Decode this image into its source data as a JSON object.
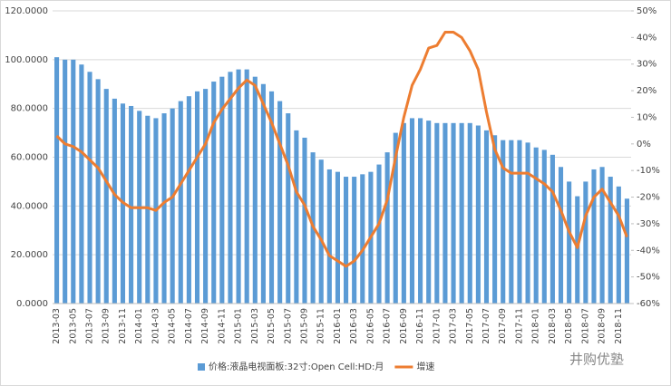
{
  "chart_data": {
    "type": "bar-line",
    "categories": [
      "2013-03",
      null,
      "2013-05",
      null,
      "2013-07",
      null,
      "2013-09",
      null,
      "2013-11",
      null,
      "2014-01",
      null,
      "2014-03",
      null,
      "2014-05",
      null,
      "2014-07",
      null,
      "2014-09",
      null,
      "2014-11",
      null,
      "2015-01",
      null,
      "2015-03",
      null,
      "2015-05",
      null,
      "2015-07",
      null,
      "2015-09",
      null,
      "2015-11",
      null,
      "2016-01",
      null,
      "2016-03",
      null,
      "2016-05",
      null,
      "2016-07",
      null,
      "2016-09",
      null,
      "2016-11",
      null,
      "2017-01",
      null,
      "2017-03",
      null,
      "2017-05",
      null,
      "2017-07",
      null,
      "2017-09",
      null,
      "2017-11",
      null,
      "2018-01",
      null,
      "2018-03",
      null,
      "2018-05",
      null,
      "2018-07",
      null,
      "2018-09",
      null,
      "2018-11",
      null
    ],
    "series": [
      {
        "name": "价格:液晶电视面板:32寸:Open Cell:HD:月",
        "color": "#5b9bd5",
        "values": [
          101,
          100,
          100,
          98,
          95,
          92,
          88,
          84,
          82,
          81,
          79,
          77,
          76,
          78,
          80,
          83,
          85,
          87,
          88,
          91,
          93,
          95,
          96,
          96,
          93,
          90,
          87,
          83,
          78,
          71,
          68,
          62,
          59,
          55,
          54,
          52,
          52,
          53,
          54,
          57,
          62,
          70,
          74,
          76,
          76,
          75,
          74,
          74,
          74,
          74,
          74,
          73,
          71,
          69,
          67,
          67,
          67,
          66,
          64,
          63,
          61,
          56,
          50,
          44,
          50,
          55,
          56,
          52,
          48,
          43
        ]
      },
      {
        "name": "增速",
        "color": "#ed7d31",
        "axis": "y2",
        "values": [
          3,
          0,
          -1,
          -3,
          -6,
          -9,
          -14,
          -19,
          -22,
          -24,
          -24,
          -24,
          -25,
          -22,
          -20,
          -15,
          -10,
          -5,
          0,
          8,
          13,
          17,
          21,
          24,
          22,
          15,
          8,
          0,
          -8,
          -18,
          -23,
          -31,
          -36,
          -42,
          -44,
          -46,
          -44,
          -40,
          -35,
          -30,
          -21,
          -5,
          10,
          22,
          28,
          36,
          37,
          42,
          42,
          40,
          35,
          28,
          12,
          -2,
          -9,
          -11,
          -11,
          -11,
          -13,
          -15,
          -18,
          -25,
          -33,
          -39,
          -27,
          -20,
          -17,
          -22,
          -27,
          -35
        ]
      }
    ],
    "ylim": [
      0,
      120
    ],
    "yticks": [
      {
        "value": 0,
        "label": "0.0000"
      },
      {
        "value": 20,
        "label": "20.0000"
      },
      {
        "value": 40,
        "label": "40.0000"
      },
      {
        "value": 60,
        "label": "60.0000"
      },
      {
        "value": 80,
        "label": "80.0000"
      },
      {
        "value": 100,
        "label": "100.0000"
      },
      {
        "value": 120,
        "label": "120.0000"
      }
    ],
    "y2lim": [
      -60,
      50
    ],
    "y2ticks": [
      {
        "value": -60,
        "label": "-60%"
      },
      {
        "value": -50,
        "label": "-50%"
      },
      {
        "value": -40,
        "label": "-40%"
      },
      {
        "value": -30,
        "label": "-30%"
      },
      {
        "value": -20,
        "label": "-20%"
      },
      {
        "value": -10,
        "label": "-10%"
      },
      {
        "value": 0,
        "label": "0%"
      },
      {
        "value": 10,
        "label": "10%"
      },
      {
        "value": 20,
        "label": "20%"
      },
      {
        "value": 30,
        "label": "30%"
      },
      {
        "value": 40,
        "label": "40%"
      },
      {
        "value": 50,
        "label": "50%"
      }
    ],
    "grid": true,
    "legend": "bottom",
    "watermark": "井购优塾"
  }
}
